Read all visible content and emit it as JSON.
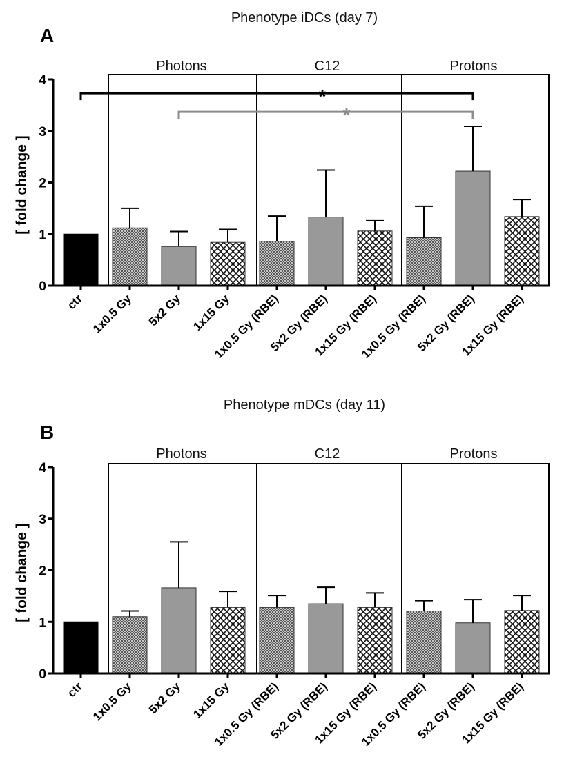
{
  "colors": {
    "ctr": "#000000",
    "checker_dark": "#555555",
    "checker_light": "#c8c8c8",
    "solid_gray": "#999999",
    "cross_hatch": "#111111",
    "sig_black": "#000000",
    "sig_gray": "#8c8c8c"
  },
  "chart_data": [
    {
      "type": "bar",
      "panel": "A",
      "title": "Phenotype iDCs (day 7)",
      "ylabel": "[ fold change ]",
      "xlabel": "",
      "ylim": [
        0,
        4
      ],
      "yticks": [
        "0",
        "1",
        "2",
        "3",
        "4"
      ],
      "groups": [
        "Photons",
        "C12",
        "Protons"
      ],
      "categories": [
        "ctr",
        "1x0.5 Gy",
        "5x2 Gy",
        "1x15 Gy",
        "1x0.5 Gy (RBE)",
        "5x2 Gy (RBE)",
        "1x15 Gy (RBE)",
        "1x0.5 Gy (RBE)",
        "5x2 Gy (RBE)",
        "1x15 Gy (RBE)"
      ],
      "values": [
        1.0,
        1.12,
        0.76,
        0.84,
        0.86,
        1.33,
        1.06,
        0.93,
        2.22,
        1.34
      ],
      "errors": [
        0,
        0.38,
        0.29,
        0.25,
        0.49,
        0.91,
        0.2,
        0.61,
        0.87,
        0.33
      ],
      "significance": [
        {
          "label": "*",
          "from": 0,
          "to": 8,
          "y": 3.73,
          "color": "black"
        },
        {
          "label": "*",
          "from": 2,
          "to": 8,
          "y": 3.37,
          "color": "gray"
        }
      ]
    },
    {
      "type": "bar",
      "panel": "B",
      "title": "Phenotype mDCs (day 11)",
      "ylabel": "[ fold change ]",
      "xlabel": "",
      "ylim": [
        0,
        4
      ],
      "yticks": [
        "0",
        "1",
        "2",
        "3",
        "4"
      ],
      "groups": [
        "Photons",
        "C12",
        "Protons"
      ],
      "categories": [
        "ctr",
        "1x0.5 Gy",
        "5x2 Gy",
        "1x15 Gy",
        "1x0.5 Gy (RBE)",
        "5x2 Gy (RBE)",
        "1x15 Gy (RBE)",
        "1x0.5 Gy (RBE)",
        "5x2 Gy (RBE)",
        "1x15 Gy (RBE)"
      ],
      "values": [
        1.0,
        1.1,
        1.66,
        1.28,
        1.28,
        1.35,
        1.28,
        1.21,
        0.98,
        1.22
      ],
      "errors": [
        0,
        0.11,
        0.89,
        0.31,
        0.23,
        0.32,
        0.28,
        0.2,
        0.45,
        0.29
      ],
      "significance": []
    }
  ]
}
